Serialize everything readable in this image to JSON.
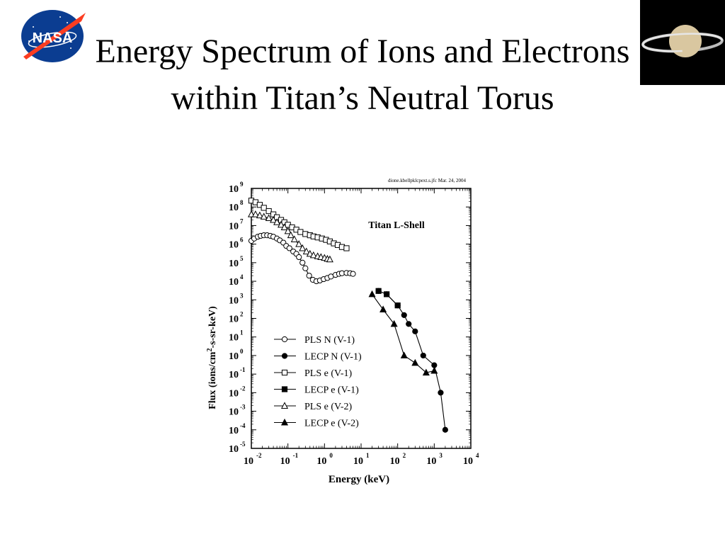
{
  "slide": {
    "title": "Energy Spectrum of Ions and Electrons within Titan’s Neutral Torus",
    "logo_text": "NASA"
  },
  "chart_data": {
    "type": "scatter",
    "header_note": "dione.kbellpklcpext.s.jfc Mar. 24, 2004",
    "inner_title": "Titan L-Shell",
    "xlabel": "Energy (keV)",
    "ylabel": "Flux (ions/cm²-s-sr-keV)",
    "x_scale": "log",
    "y_scale": "log",
    "x_exp_range": [
      -2,
      4
    ],
    "y_exp_range": [
      -5,
      9
    ],
    "x_tick_labels": [
      "10",
      "10",
      "10",
      "10",
      "10",
      "10",
      "10"
    ],
    "x_tick_exps": [
      "-2",
      "-1",
      "0",
      "1",
      "2",
      "3",
      "4"
    ],
    "y_tick_labels": [
      "10",
      "10",
      "10",
      "10",
      "10",
      "10",
      "10",
      "10",
      "10",
      "10",
      "10",
      "10",
      "10",
      "10",
      "10"
    ],
    "y_tick_exps": [
      "-5",
      "-4",
      "-3",
      "-2",
      "-1",
      "0",
      "1",
      "2",
      "3",
      "4",
      "5",
      "6",
      "7",
      "8",
      "9"
    ],
    "series": [
      {
        "name": "PLS N (V-1)",
        "marker": "circle-open",
        "x": [
          0.01,
          0.012,
          0.015,
          0.018,
          0.022,
          0.027,
          0.033,
          0.04,
          0.05,
          0.06,
          0.075,
          0.09,
          0.11,
          0.14,
          0.17,
          0.2,
          0.25,
          0.3,
          0.38,
          0.48,
          0.6,
          0.75,
          0.95,
          1.2,
          1.5,
          2,
          2.5,
          3,
          4,
          5,
          6
        ],
        "y": [
          1500000.0,
          2000000.0,
          2500000.0,
          2800000.0,
          3000000.0,
          3000000.0,
          2800000.0,
          2500000.0,
          2000000.0,
          1600000.0,
          1200000.0,
          800000.0,
          600000.0,
          400000.0,
          300000.0,
          200000.0,
          100000.0,
          50000.0,
          20000.0,
          12000.0,
          10000.0,
          11000.0,
          13000.0,
          15000.0,
          18000.0,
          22000.0,
          25000.0,
          27000.0,
          28000.0,
          27000.0,
          25000.0
        ]
      },
      {
        "name": "LECP N (V-1)",
        "marker": "circle-filled",
        "x": [
          30,
          50,
          100,
          150,
          200,
          300,
          500,
          1000,
          1500,
          2000
        ],
        "y": [
          3000,
          2000,
          500,
          150,
          50,
          20,
          1,
          0.3,
          0.01,
          0.0001
        ]
      },
      {
        "name": "PLS e (V-1)",
        "marker": "square-open",
        "x": [
          0.01,
          0.013,
          0.017,
          0.022,
          0.03,
          0.04,
          0.05,
          0.065,
          0.08,
          0.1,
          0.13,
          0.17,
          0.22,
          0.3,
          0.4,
          0.5,
          0.65,
          0.85,
          1.1,
          1.4,
          1.8,
          2.3,
          3,
          4
        ],
        "y": [
          220000000.0,
          180000000.0,
          130000000.0,
          90000000.0,
          60000000.0,
          40000000.0,
          28000000.0,
          20000000.0,
          15000000.0,
          11000000.0,
          8000000.0,
          6000000.0,
          4500000.0,
          3500000.0,
          3000000.0,
          2600000.0,
          2300000.0,
          2000000.0,
          1700000.0,
          1400000.0,
          1100000.0,
          900000.0,
          700000.0,
          600000.0
        ]
      },
      {
        "name": "LECP e (V-1)",
        "marker": "square-filled",
        "x": [
          30,
          50,
          100
        ],
        "y": [
          3000,
          2000,
          500
        ]
      },
      {
        "name": "PLS e (V-2)",
        "marker": "triangle-open",
        "x": [
          0.01,
          0.013,
          0.017,
          0.022,
          0.03,
          0.04,
          0.05,
          0.065,
          0.08,
          0.1,
          0.12,
          0.15,
          0.2,
          0.25,
          0.32,
          0.4,
          0.5,
          0.65,
          0.8,
          1,
          1.2,
          1.4
        ],
        "y": [
          40000000.0,
          40000000.0,
          35000000.0,
          30000000.0,
          25000000.0,
          20000000.0,
          15000000.0,
          11000000.0,
          8000000.0,
          5000000.0,
          3000000.0,
          1800000.0,
          1000000.0,
          600000.0,
          400000.0,
          300000.0,
          250000.0,
          220000.0,
          200000.0,
          180000.0,
          160000.0,
          150000.0
        ]
      },
      {
        "name": "LECP e (V-2)",
        "marker": "triangle-filled",
        "x": [
          20,
          40,
          80,
          150,
          300,
          600,
          1000
        ],
        "y": [
          2000,
          300,
          50,
          1,
          0.4,
          0.12,
          0.15
        ]
      }
    ],
    "legend": "bottom-left"
  },
  "colors": {
    "nasa_blue": "#0b3d91",
    "nasa_red": "#fc3d21",
    "saturn_bg": "#000000"
  }
}
